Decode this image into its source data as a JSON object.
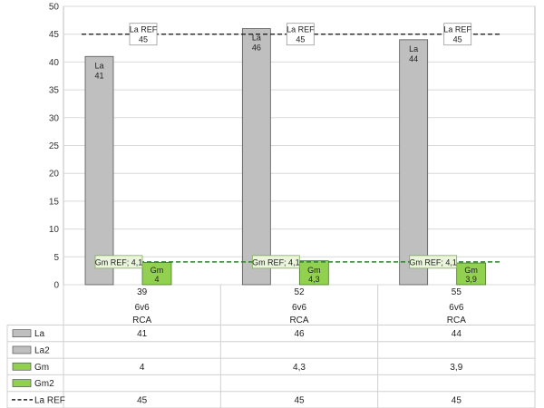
{
  "chart_data": {
    "type": "bar",
    "ylim": [
      0,
      50
    ],
    "yticks": [
      0,
      5,
      10,
      15,
      20,
      25,
      30,
      35,
      40,
      45,
      50
    ],
    "grid": true,
    "categories": [
      {
        "levels": [
          "39",
          "6v6",
          "RCA"
        ]
      },
      {
        "levels": [
          "52",
          "6v6",
          "RCA"
        ]
      },
      {
        "levels": [
          "55",
          "6v6",
          "RCA"
        ]
      }
    ],
    "series": [
      {
        "name": "La",
        "kind": "bar",
        "color": "#bfbfbf",
        "values": [
          41,
          46,
          44
        ],
        "labels": [
          "41",
          "46",
          "44"
        ],
        "table": [
          "41",
          "46",
          "44"
        ]
      },
      {
        "name": "La2",
        "kind": "bar",
        "color": "#bfbfbf",
        "values": [
          null,
          null,
          null
        ],
        "labels": [
          "",
          "",
          ""
        ],
        "table": [
          "",
          "",
          ""
        ]
      },
      {
        "name": "Gm",
        "kind": "bar",
        "color": "#92d050",
        "values": [
          4,
          4.3,
          3.9
        ],
        "labels": [
          "4",
          "4,3",
          "3,9"
        ],
        "table": [
          "4",
          "4,3",
          "3,9"
        ]
      },
      {
        "name": "Gm2",
        "kind": "bar",
        "color": "#92d050",
        "values": [
          null,
          null,
          null
        ],
        "labels": [
          "",
          "",
          ""
        ],
        "table": [
          "",
          "",
          ""
        ]
      },
      {
        "name": "La REF",
        "kind": "line",
        "color": "#222222",
        "values": [
          45,
          45,
          45
        ],
        "labels": [
          "45",
          "45",
          "45"
        ],
        "table": [
          "45",
          "45",
          "45"
        ]
      },
      {
        "name": "Gm REF",
        "kind": "line",
        "color": "#2e7d32",
        "values": [
          4.1,
          4.1,
          4.1
        ],
        "labels": [
          "4,1",
          "4,1",
          "4,1"
        ],
        "table": [
          "4,1",
          "4,1",
          "4,1"
        ]
      }
    ]
  }
}
